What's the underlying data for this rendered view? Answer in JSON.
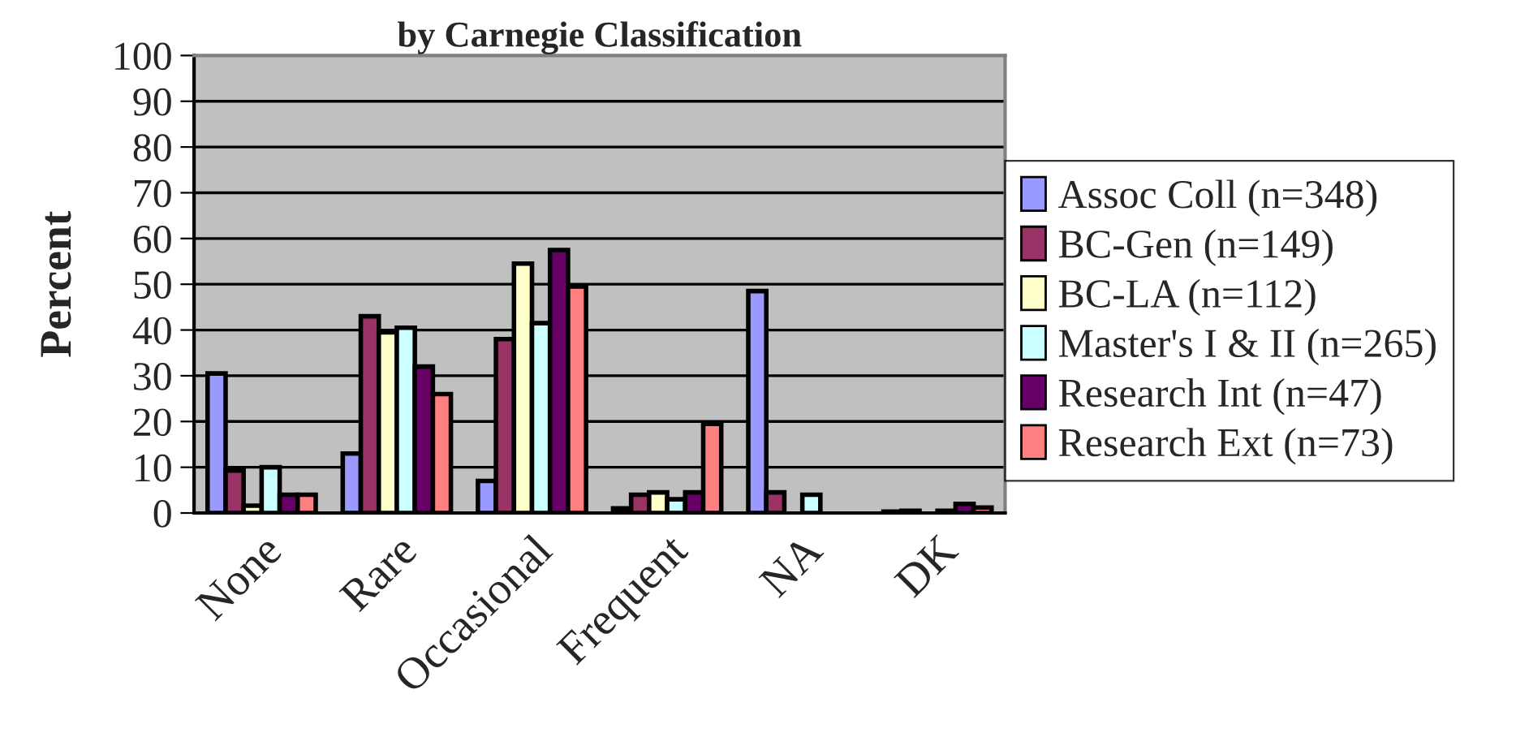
{
  "chart_data": {
    "type": "bar",
    "title": "by Carnegie Classification",
    "ylabel": "Percent",
    "categories": [
      "None",
      "Rare",
      "Occasional",
      "Frequent",
      "NA",
      "DK"
    ],
    "series": [
      {
        "name": "Assoc Coll (n=348)",
        "color": "#9999ff",
        "values": [
          30.5,
          13,
          7,
          1,
          48.5,
          0.3
        ]
      },
      {
        "name": "BC-Gen (n=149)",
        "color": "#993366",
        "values": [
          9.3,
          43,
          38,
          4,
          4.5,
          0.5
        ]
      },
      {
        "name": "BC-LA (n=112)",
        "color": "#ffffcc",
        "values": [
          1.6,
          39.5,
          54.5,
          4.5,
          0,
          0
        ]
      },
      {
        "name": "Master's I & II (n=265)",
        "color": "#ccffff",
        "values": [
          10,
          40.5,
          41.5,
          3,
          4,
          0.5
        ]
      },
      {
        "name": "Research Int (n=47)",
        "color": "#660066",
        "values": [
          4,
          32,
          57.5,
          4.5,
          0,
          2
        ]
      },
      {
        "name": "Research Ext (n=73)",
        "color": "#ff8080",
        "values": [
          4,
          26,
          49.5,
          19.5,
          0,
          1.2
        ]
      }
    ],
    "ylim": [
      0,
      100
    ],
    "yticks": [
      0,
      10,
      20,
      30,
      40,
      50,
      60,
      70,
      80,
      90,
      100
    ],
    "grid": "y",
    "legend": "right"
  }
}
